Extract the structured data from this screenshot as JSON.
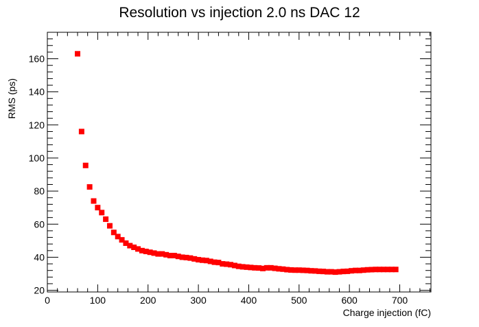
{
  "chart_data": {
    "type": "scatter",
    "title": "Resolution vs injection 2.0 ns DAC 12",
    "xlabel": "Charge injection (fC)",
    "ylabel": "RMS (ps)",
    "xlim": [
      0,
      762
    ],
    "ylim": [
      19,
      176
    ],
    "xticks": [
      0,
      100,
      200,
      300,
      400,
      500,
      600,
      700
    ],
    "yticks": [
      20,
      40,
      60,
      80,
      100,
      120,
      140,
      160
    ],
    "grid": false,
    "marker_color": "#ff0000",
    "series": [
      {
        "x": [
          60,
          68,
          76,
          84,
          92,
          100,
          108,
          116,
          124,
          132,
          140,
          148,
          156,
          164,
          172,
          180,
          188,
          196,
          204,
          212,
          220,
          228,
          236,
          244,
          252,
          260,
          268,
          276,
          284,
          292,
          300,
          308,
          316,
          324,
          332,
          340,
          348,
          356,
          364,
          372,
          380,
          388,
          396,
          404,
          412,
          420,
          428,
          436,
          444,
          452,
          460,
          468,
          476,
          484,
          492,
          500,
          508,
          516,
          524,
          532,
          540,
          548,
          556,
          564,
          572,
          580,
          588,
          596,
          604,
          612,
          620,
          628,
          636,
          644,
          652,
          660,
          668,
          676,
          684,
          692
        ],
        "y": [
          163,
          116,
          95.5,
          82.5,
          74,
          70,
          67,
          63,
          59,
          55,
          52.5,
          50.5,
          48.5,
          47,
          46,
          45,
          44,
          43.5,
          43,
          42.5,
          42,
          42,
          41.5,
          41,
          41,
          40.5,
          40,
          39.8,
          39.5,
          39,
          38.5,
          38.2,
          38,
          37.5,
          37,
          36.8,
          36,
          35.8,
          35.5,
          35,
          34.5,
          34.2,
          34,
          33.8,
          33.6,
          33.5,
          33.2,
          33.6,
          33.6,
          33.3,
          33,
          32.8,
          32.5,
          32.3,
          32.2,
          32.2,
          32.1,
          32,
          31.8,
          31.7,
          31.5,
          31.4,
          31.2,
          31.2,
          31,
          31.2,
          31.4,
          31.5,
          31.8,
          32,
          32,
          32.2,
          32.4,
          32.5,
          32.6,
          32.6,
          32.6,
          32.6,
          32.6,
          32.6
        ]
      }
    ]
  }
}
